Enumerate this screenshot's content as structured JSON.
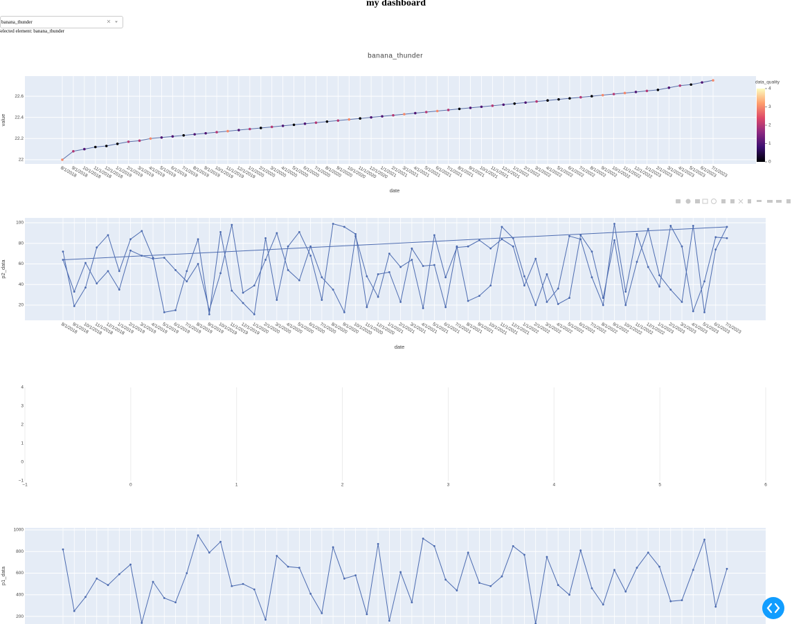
{
  "header": {
    "title": "my dashboard"
  },
  "dropdown": {
    "value": "banana_thunder"
  },
  "selected_text": "Selected element: banana_thunder",
  "chart_data": [
    {
      "type": "line",
      "title": "banana_thunder",
      "x_label": "date",
      "y_label": "value",
      "categories": [
        "8/1/2018",
        "9/1/2018",
        "10/1/2018",
        "11/1/2018",
        "12/1/2018",
        "1/1/2019",
        "2/1/2019",
        "3/1/2019",
        "4/1/2019",
        "5/1/2019",
        "6/1/2019",
        "7/1/2019",
        "8/1/2019",
        "9/1/2019",
        "10/1/2019",
        "11/1/2019",
        "12/1/2019",
        "1/1/2020",
        "2/1/2020",
        "3/1/2020",
        "4/1/2020",
        "5/1/2020",
        "6/1/2020",
        "7/1/2020",
        "8/1/2020",
        "9/1/2020",
        "10/1/2020",
        "11/1/2020",
        "12/1/2020",
        "1/1/2021",
        "2/1/2021",
        "3/1/2021",
        "4/1/2021",
        "5/1/2021",
        "6/1/2021",
        "7/1/2021",
        "8/1/2021",
        "9/1/2021",
        "10/1/2021",
        "11/1/2021",
        "12/1/2021",
        "1/1/2022",
        "2/1/2022",
        "3/1/2022",
        "4/1/2022",
        "5/1/2022",
        "6/1/2022",
        "7/1/2022",
        "8/1/2022",
        "9/1/2022",
        "10/1/2022",
        "11/1/2022",
        "12/1/2022",
        "1/1/2023",
        "2/1/2023",
        "3/1/2023",
        "4/1/2023",
        "5/1/2023",
        "6/1/2023",
        "7/1/2023"
      ],
      "series": [
        {
          "color": "#5b6fa8",
          "values": [
            22.0,
            22.08,
            22.1,
            22.12,
            22.13,
            22.15,
            22.17,
            22.18,
            22.2,
            22.21,
            22.22,
            22.23,
            22.24,
            22.25,
            22.26,
            22.27,
            22.28,
            22.29,
            22.3,
            22.31,
            22.32,
            22.33,
            22.34,
            22.35,
            22.36,
            22.37,
            22.38,
            22.39,
            22.4,
            22.41,
            22.42,
            22.43,
            22.44,
            22.45,
            22.46,
            22.47,
            22.48,
            22.49,
            22.5,
            22.51,
            22.52,
            22.53,
            22.54,
            22.55,
            22.56,
            22.57,
            22.58,
            22.59,
            22.6,
            22.61,
            22.62,
            22.63,
            22.64,
            22.65,
            22.66,
            22.68,
            22.7,
            22.71,
            22.73,
            22.75
          ]
        }
      ],
      "marker_color_values": [
        3,
        2,
        1,
        0,
        0,
        0,
        2,
        2,
        3,
        1,
        1,
        0,
        1,
        1,
        2,
        3,
        1,
        2,
        0,
        2,
        1,
        0,
        1,
        2,
        0,
        2,
        3,
        0,
        1,
        1,
        2,
        3,
        1,
        2,
        3,
        2,
        0,
        1,
        1,
        2,
        1,
        0,
        1,
        2,
        0,
        0,
        0,
        2,
        0,
        3,
        2,
        3,
        1,
        2,
        0,
        1,
        2,
        0,
        1,
        3
      ],
      "colorscale": [
        "#000004",
        "#3b0f70",
        "#8c2981",
        "#de4968",
        "#fe9f6d",
        "#fcfdbf"
      ],
      "colorbar": {
        "title": "data_quality",
        "lim": [
          0,
          4
        ],
        "ticks": [
          0,
          1,
          2,
          3,
          4
        ]
      },
      "ylim": [
        21.96,
        22.79
      ],
      "yticks": [
        22,
        22.2,
        22.4,
        22.6
      ],
      "grid": true,
      "background": "#e5ecf6"
    },
    {
      "type": "line",
      "x_label": "date",
      "y_label": "p2_data",
      "categories": [
        "8/1/2018",
        "9/1/2018",
        "10/1/2018",
        "11/1/2018",
        "12/1/2018",
        "1/1/2019",
        "2/1/2019",
        "3/1/2019",
        "4/1/2019",
        "5/1/2019",
        "6/1/2019",
        "7/1/2019",
        "8/1/2019",
        "9/1/2019",
        "10/1/2019",
        "11/1/2019",
        "12/1/2019",
        "1/1/2020",
        "2/1/2020",
        "3/1/2020",
        "4/1/2020",
        "5/1/2020",
        "6/1/2020",
        "7/1/2020",
        "8/1/2020",
        "9/1/2020",
        "10/1/2020",
        "11/1/2020",
        "12/1/2020",
        "1/1/2021",
        "2/1/2021",
        "3/1/2021",
        "4/1/2021",
        "5/1/2021",
        "6/1/2021",
        "7/1/2021",
        "8/1/2021",
        "9/1/2021",
        "10/1/2021",
        "11/1/2021",
        "12/1/2021",
        "1/1/2022",
        "2/1/2022",
        "3/1/2022",
        "4/1/2022",
        "5/1/2022",
        "6/1/2022",
        "7/1/2022",
        "8/1/2022",
        "9/1/2022",
        "10/1/2022",
        "11/1/2022",
        "12/1/2022",
        "1/1/2023",
        "2/1/2023",
        "3/1/2023",
        "4/1/2023",
        "5/1/2023",
        "6/1/2023",
        "7/1/2023"
      ],
      "series": [
        {
          "color": "#4c6bb0",
          "values": [
            72,
            19,
            37,
            76,
            88,
            53,
            84,
            92,
            66,
            13,
            15,
            53,
            84,
            11,
            91,
            34,
            22,
            11,
            85,
            25,
            77,
            91,
            68,
            25,
            99,
            96,
            89,
            18,
            50,
            52,
            23,
            75,
            58,
            59,
            18,
            77,
            24,
            29,
            39,
            96,
            85,
            48,
            20,
            50,
            21,
            27,
            88,
            72,
            27,
            83,
            20,
            62,
            94,
            49,
            35,
            23,
            97,
            13,
            74,
            96
          ]
        },
        {
          "color": "#4c6bb0",
          "values": [
            64,
            33,
            61,
            41,
            53,
            35,
            73,
            68,
            65,
            66,
            54,
            43,
            60,
            15,
            51,
            98,
            32,
            39,
            64,
            90,
            54,
            44,
            77,
            47,
            35,
            13,
            87,
            48,
            28,
            70,
            57,
            64,
            17,
            88,
            47,
            76,
            77,
            83,
            75,
            84,
            77,
            39,
            65,
            23,
            36,
            87,
            84,
            47,
            20,
            99,
            33,
            89,
            57,
            38,
            97,
            77,
            14,
            43,
            86,
            85
          ]
        }
      ],
      "ylim": [
        5.2,
        104.7
      ],
      "yticks": [
        20,
        40,
        60,
        80,
        100
      ],
      "grid": true,
      "background": "#e5ecf6"
    },
    {
      "type": "scatter",
      "xlim": [
        -1,
        6
      ],
      "xticks": [
        {
          "value": -1,
          "label": "−1"
        },
        0,
        1,
        2,
        3,
        4,
        5,
        6
      ],
      "ylim": [
        -1,
        4
      ],
      "yticks": [
        {
          "value": -1,
          "label": "−1"
        },
        0,
        1,
        2,
        3,
        4
      ],
      "grid": "x",
      "background": "#ffffff"
    },
    {
      "type": "line",
      "y_label": "p1_data",
      "series": [
        {
          "color": "#4c6bb0",
          "values": [
            820,
            250,
            380,
            550,
            490,
            590,
            680,
            140,
            520,
            370,
            330,
            600,
            950,
            790,
            890,
            480,
            500,
            450,
            170,
            760,
            660,
            650,
            410,
            230,
            840,
            550,
            580,
            220,
            870,
            160,
            610,
            330,
            920,
            850,
            540,
            440,
            790,
            510,
            480,
            570,
            850,
            770,
            135,
            750,
            490,
            400,
            810,
            460,
            310,
            630,
            430,
            650,
            790,
            660,
            340,
            350,
            630,
            910,
            290,
            640
          ]
        }
      ],
      "ylim": [
        130,
        1019
      ],
      "yticks": [
        200,
        400,
        600,
        800,
        1000
      ],
      "grid": true,
      "background": "#e5ecf6"
    }
  ]
}
